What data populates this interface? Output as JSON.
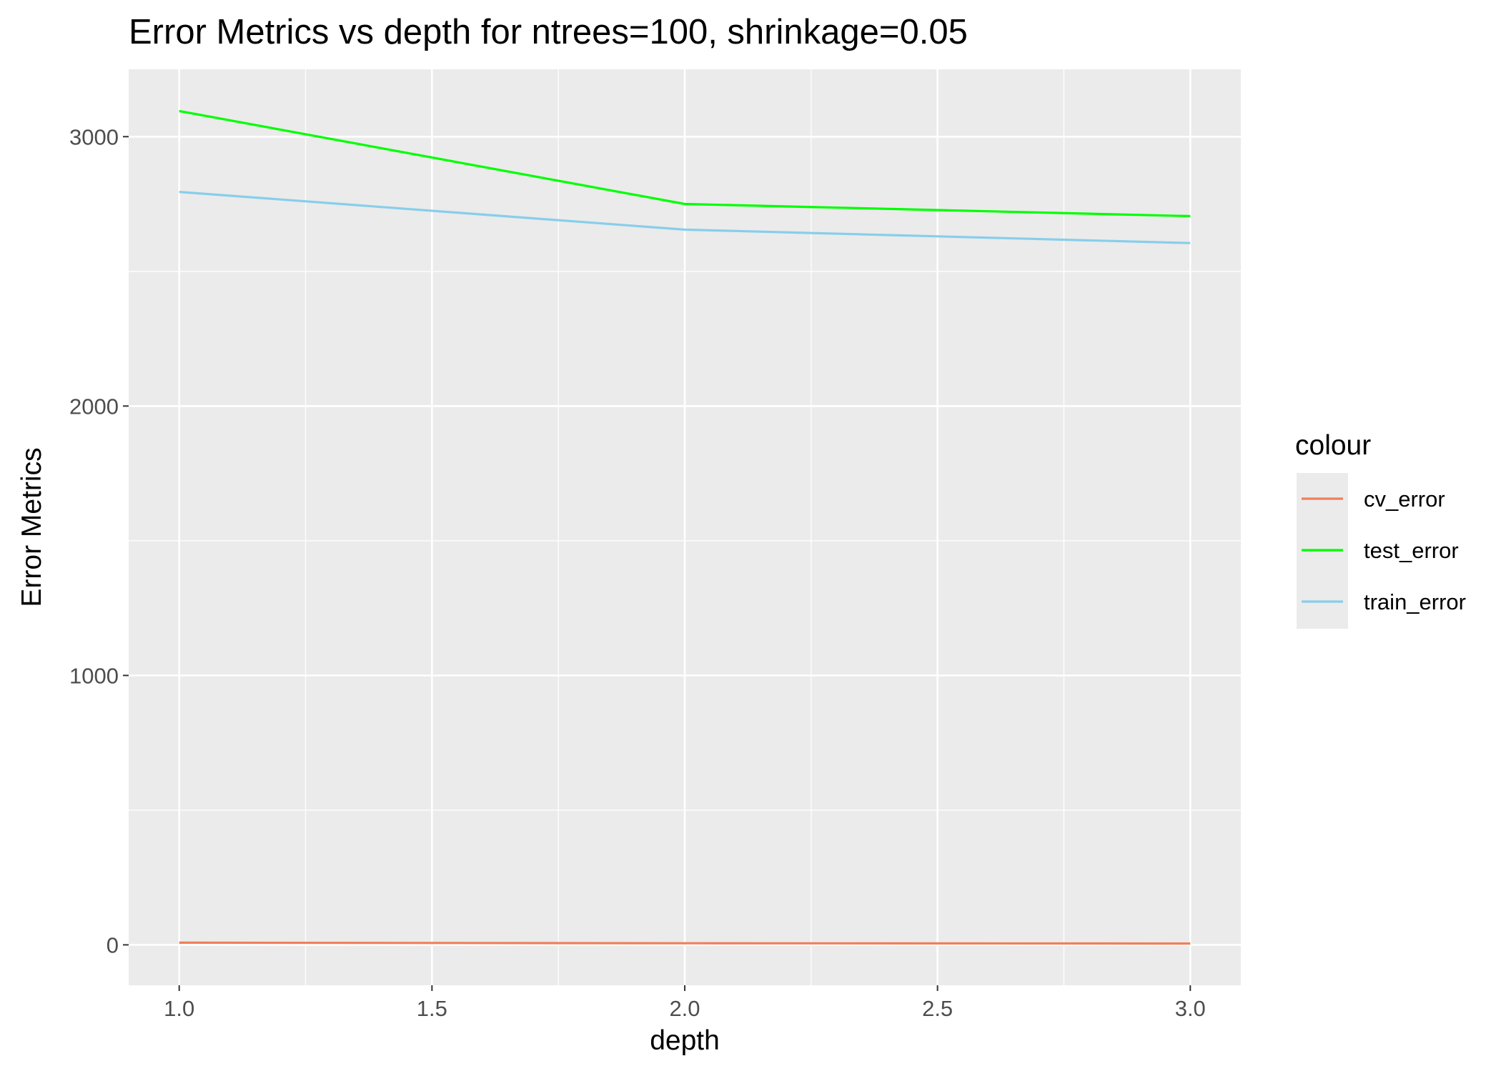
{
  "chart_data": {
    "type": "line",
    "title": "Error Metrics vs depth for ntrees=100, shrinkage=0.05",
    "xlabel": "depth",
    "ylabel": "Error Metrics",
    "xlim": [
      0.9,
      3.1
    ],
    "ylim": [
      -150,
      3250
    ],
    "x_ticks": [
      1.0,
      1.5,
      2.0,
      2.5,
      3.0
    ],
    "x_tick_labels": [
      "1.0",
      "1.5",
      "2.0",
      "2.5",
      "3.0"
    ],
    "y_ticks": [
      0,
      1000,
      2000,
      3000
    ],
    "y_tick_labels": [
      "0",
      "1000",
      "2000",
      "3000"
    ],
    "grid": true,
    "legend": {
      "title": "colour",
      "position": "right"
    },
    "x": [
      1,
      2,
      3
    ],
    "series": [
      {
        "name": "cv_error",
        "color": "#f07f5a",
        "values": [
          8,
          6,
          5
        ]
      },
      {
        "name": "test_error",
        "color": "#00ff00",
        "values": [
          3095,
          2750,
          2705
        ]
      },
      {
        "name": "train_error",
        "color": "#87ceeb",
        "values": [
          2795,
          2655,
          2605
        ]
      }
    ]
  }
}
